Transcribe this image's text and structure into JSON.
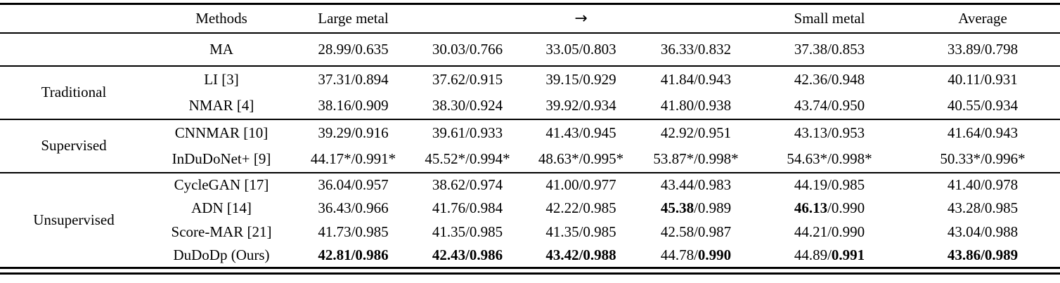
{
  "colors": {
    "text": "#000000",
    "rule": "#000000",
    "background": "#ffffff"
  },
  "table": {
    "header": {
      "group": "",
      "methods": "Methods",
      "cols": [
        "Large metal",
        "",
        "→",
        "",
        "Small metal",
        "Average"
      ]
    },
    "metric_format": "PSNR/SSIM",
    "groups": [
      {
        "label": "",
        "rows": [
          {
            "method": "MA",
            "cells": [
              {
                "v": "28.99/0.635",
                "b": "none"
              },
              {
                "v": "30.03/0.766",
                "b": "none"
              },
              {
                "v": "33.05/0.803",
                "b": "none"
              },
              {
                "v": "36.33/0.832",
                "b": "none"
              },
              {
                "v": "37.38/0.853",
                "b": "none"
              },
              {
                "v": "33.89/0.798",
                "b": "none"
              }
            ]
          }
        ]
      },
      {
        "label": "Traditional",
        "rows": [
          {
            "method": "LI [3]",
            "cells": [
              {
                "v": "37.31/0.894",
                "b": "none"
              },
              {
                "v": "37.62/0.915",
                "b": "none"
              },
              {
                "v": "39.15/0.929",
                "b": "none"
              },
              {
                "v": "41.84/0.943",
                "b": "none"
              },
              {
                "v": "42.36/0.948",
                "b": "none"
              },
              {
                "v": "40.11/0.931",
                "b": "none"
              }
            ]
          },
          {
            "method": "NMAR [4]",
            "cells": [
              {
                "v": "38.16/0.909",
                "b": "none"
              },
              {
                "v": "38.30/0.924",
                "b": "none"
              },
              {
                "v": "39.92/0.934",
                "b": "none"
              },
              {
                "v": "41.80/0.938",
                "b": "none"
              },
              {
                "v": "43.74/0.950",
                "b": "none"
              },
              {
                "v": "40.55/0.934",
                "b": "none"
              }
            ]
          }
        ]
      },
      {
        "label": "Supervised",
        "rows": [
          {
            "method": "CNNMAR [10]",
            "cells": [
              {
                "v": "39.29/0.916",
                "b": "none"
              },
              {
                "v": "39.61/0.933",
                "b": "none"
              },
              {
                "v": "41.43/0.945",
                "b": "none"
              },
              {
                "v": "42.92/0.951",
                "b": "none"
              },
              {
                "v": "43.13/0.953",
                "b": "none"
              },
              {
                "v": "41.64/0.943",
                "b": "none"
              }
            ]
          },
          {
            "method": "InDuDoNet+ [9]",
            "cells": [
              {
                "v": "44.17*/0.991*",
                "b": "none"
              },
              {
                "v": "45.52*/0.994*",
                "b": "none"
              },
              {
                "v": "48.63*/0.995*",
                "b": "none"
              },
              {
                "v": "53.87*/0.998*",
                "b": "none"
              },
              {
                "v": "54.63*/0.998*",
                "b": "none"
              },
              {
                "v": "50.33*/0.996*",
                "b": "none"
              }
            ]
          }
        ]
      },
      {
        "label": "Unsupervised",
        "rows": [
          {
            "method": "CycleGAN [17]",
            "cells": [
              {
                "v": "36.04/0.957",
                "b": "none"
              },
              {
                "v": "38.62/0.974",
                "b": "none"
              },
              {
                "v": "41.00/0.977",
                "b": "none"
              },
              {
                "v": "43.44/0.983",
                "b": "none"
              },
              {
                "v": "44.19/0.985",
                "b": "none"
              },
              {
                "v": "41.40/0.978",
                "b": "none"
              }
            ]
          },
          {
            "method": "ADN [14]",
            "cells": [
              {
                "v": "36.43/0.966",
                "b": "none"
              },
              {
                "v": "41.76/0.984",
                "b": "none"
              },
              {
                "v": "42.22/0.985",
                "b": "none"
              },
              {
                "v": "45.38/0.989",
                "b": "psnr"
              },
              {
                "v": "46.13/0.990",
                "b": "psnr"
              },
              {
                "v": "43.28/0.985",
                "b": "none"
              }
            ]
          },
          {
            "method": "Score-MAR [21]",
            "cells": [
              {
                "v": "41.73/0.985",
                "b": "none"
              },
              {
                "v": "41.35/0.985",
                "b": "none"
              },
              {
                "v": "41.35/0.985",
                "b": "none"
              },
              {
                "v": "42.58/0.987",
                "b": "none"
              },
              {
                "v": "44.21/0.990",
                "b": "none"
              },
              {
                "v": "43.04/0.988",
                "b": "none"
              }
            ]
          },
          {
            "method": "DuDoDp (Ours)",
            "cells": [
              {
                "v": "42.81/0.986",
                "b": "all"
              },
              {
                "v": "42.43/0.986",
                "b": "all"
              },
              {
                "v": "43.42/0.988",
                "b": "all"
              },
              {
                "v": "44.78/0.990",
                "b": "ssim"
              },
              {
                "v": "44.89/0.991",
                "b": "ssim"
              },
              {
                "v": "43.86/0.989",
                "b": "all"
              }
            ]
          }
        ]
      }
    ]
  }
}
